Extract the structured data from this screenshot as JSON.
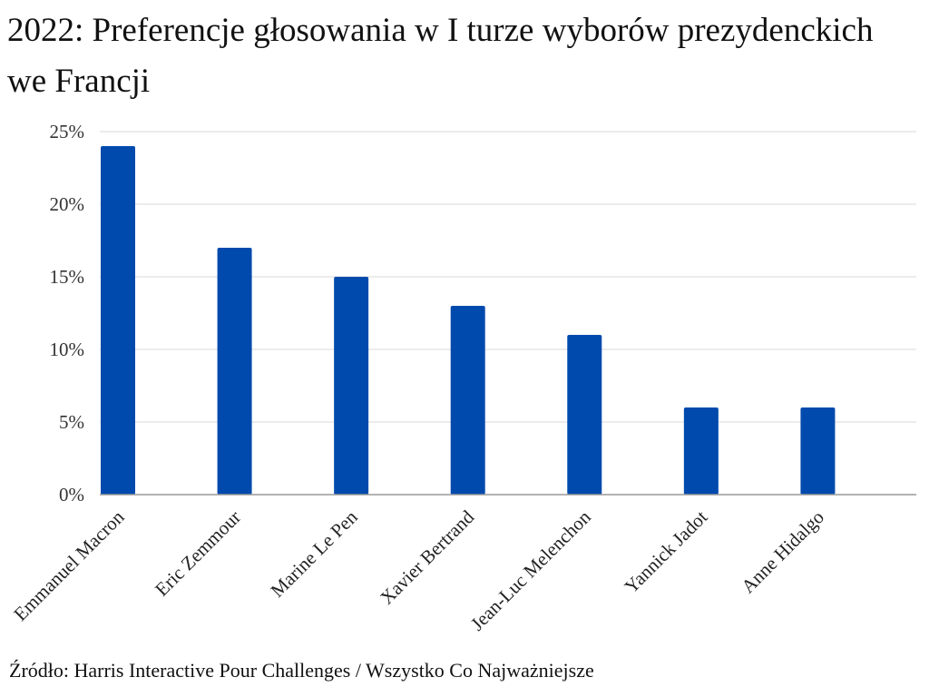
{
  "chart_data": {
    "type": "bar",
    "title": "2022: Preferencje głosowania w I turze wyborów prezydenckich we Francji",
    "xlabel": "",
    "ylabel": "",
    "categories": [
      "Emmanuel Macron",
      "Eric Zemmour",
      "Marine Le Pen",
      "Xavier Bertrand",
      "Jean-Luc Melenchon",
      "Yannick Jadot",
      "Anne Hidalgo"
    ],
    "values": [
      24,
      17,
      15,
      13,
      11,
      6,
      6
    ],
    "ylim": [
      0,
      25
    ],
    "yticks": [
      0,
      5,
      10,
      15,
      20,
      25
    ],
    "ytick_labels": [
      "0%",
      "5%",
      "10%",
      "15%",
      "20%",
      "25%"
    ],
    "grid": true,
    "bar_color": "#004aad"
  },
  "source": "Źródło: Harris Interactive Pour Challenges / Wszystko Co Najważniejsze"
}
